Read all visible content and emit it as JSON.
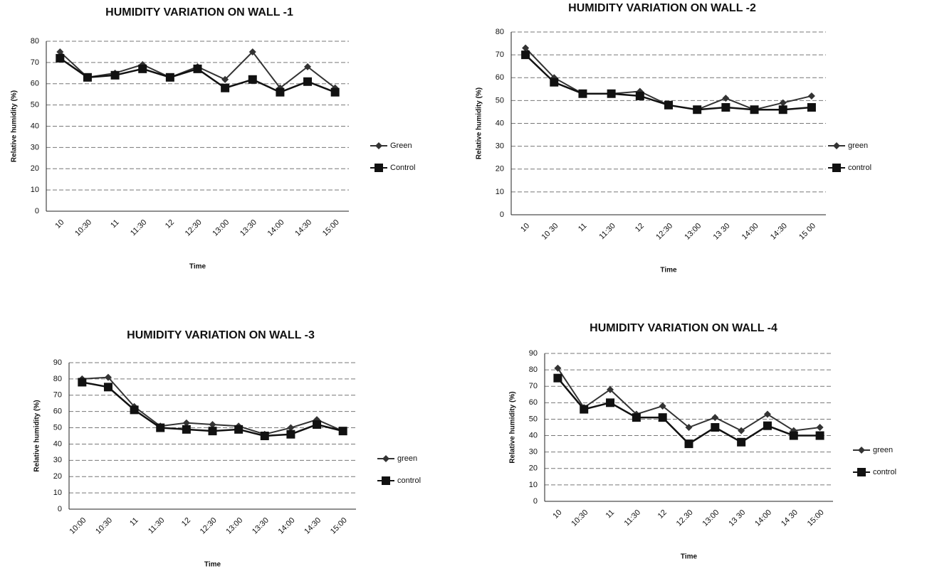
{
  "chart_data": [
    {
      "type": "line",
      "title": "HUMIDITY VARIATION ON WALL -1",
      "x_label": "Time",
      "y_label": "Relative humidity (%)",
      "categories": [
        "10",
        "10:30",
        "11",
        "11:30",
        "12",
        "12:30",
        "13:00",
        "13:30",
        "14:00",
        "14:30",
        "15:00"
      ],
      "series": [
        {
          "name": "Green",
          "color": "#333333",
          "values": [
            75,
            63,
            65,
            69,
            63,
            68,
            62,
            75,
            58,
            68,
            58
          ]
        },
        {
          "name": "Control",
          "color": "#111111",
          "values": [
            72,
            63,
            64,
            67,
            63,
            67,
            58,
            62,
            56,
            61,
            56
          ]
        }
      ],
      "ylim": [
        0,
        80
      ],
      "yticks": [
        0,
        10,
        20,
        30,
        40,
        50,
        60,
        70,
        80
      ],
      "grid": true,
      "legend": "right"
    },
    {
      "type": "line",
      "title": "HUMIDITY VARIATION ON WALL -2",
      "x_label": "Time",
      "y_label": "Relative humidity (%)",
      "categories": [
        "10",
        "10 30",
        "11",
        "11:30",
        "12",
        "12:30",
        "13:00",
        "13 30",
        "14:00",
        "14:30",
        "15 00"
      ],
      "series": [
        {
          "name": "green",
          "color": "#333333",
          "values": [
            73,
            60,
            53,
            53,
            54,
            48,
            46,
            51,
            46,
            49,
            52
          ]
        },
        {
          "name": "control",
          "color": "#111111",
          "values": [
            70,
            58,
            53,
            53,
            52,
            48,
            46,
            47,
            46,
            46,
            47
          ]
        }
      ],
      "ylim": [
        0,
        80
      ],
      "yticks": [
        0,
        10,
        20,
        30,
        40,
        50,
        60,
        70,
        80
      ],
      "grid": true,
      "legend": "right"
    },
    {
      "type": "line",
      "title": "HUMIDITY VARIATION ON WALL -3",
      "x_label": "Time",
      "y_label": "Relative humidity (%)",
      "categories": [
        "10:00",
        "10:30",
        "11",
        "11:30",
        "12",
        "12:30",
        "13:00",
        "13:30",
        "14:00",
        "14:30",
        "15:00"
      ],
      "series": [
        {
          "name": "green",
          "color": "#333333",
          "values": [
            80,
            81,
            63,
            51,
            53,
            52,
            51,
            46,
            50,
            55,
            48
          ]
        },
        {
          "name": "control",
          "color": "#111111",
          "values": [
            78,
            75,
            61,
            50,
            49,
            48,
            49,
            45,
            46,
            52,
            48
          ]
        }
      ],
      "ylim": [
        0,
        90
      ],
      "yticks": [
        0,
        10,
        20,
        30,
        40,
        50,
        60,
        70,
        80,
        90
      ],
      "grid": true,
      "legend": "right"
    },
    {
      "type": "line",
      "title": "HUMIDITY VARIATION ON WALL -4",
      "x_label": "Time",
      "y_label": "Relative humidity (%)",
      "categories": [
        "10",
        "10:30",
        "11",
        "11:30",
        "12",
        "12.30",
        "13:00",
        "13 30",
        "14:00",
        "14 30",
        "15:00"
      ],
      "series": [
        {
          "name": "green",
          "color": "#333333",
          "values": [
            81,
            57,
            68,
            53,
            58,
            45,
            51,
            43,
            53,
            43,
            45
          ]
        },
        {
          "name": "control",
          "color": "#111111",
          "values": [
            75,
            56,
            60,
            51,
            51,
            35,
            45,
            36,
            46,
            40,
            40
          ]
        }
      ],
      "ylim": [
        0,
        90
      ],
      "yticks": [
        0,
        10,
        20,
        30,
        40,
        50,
        60,
        70,
        80,
        90
      ],
      "grid": true,
      "legend": "right"
    }
  ]
}
